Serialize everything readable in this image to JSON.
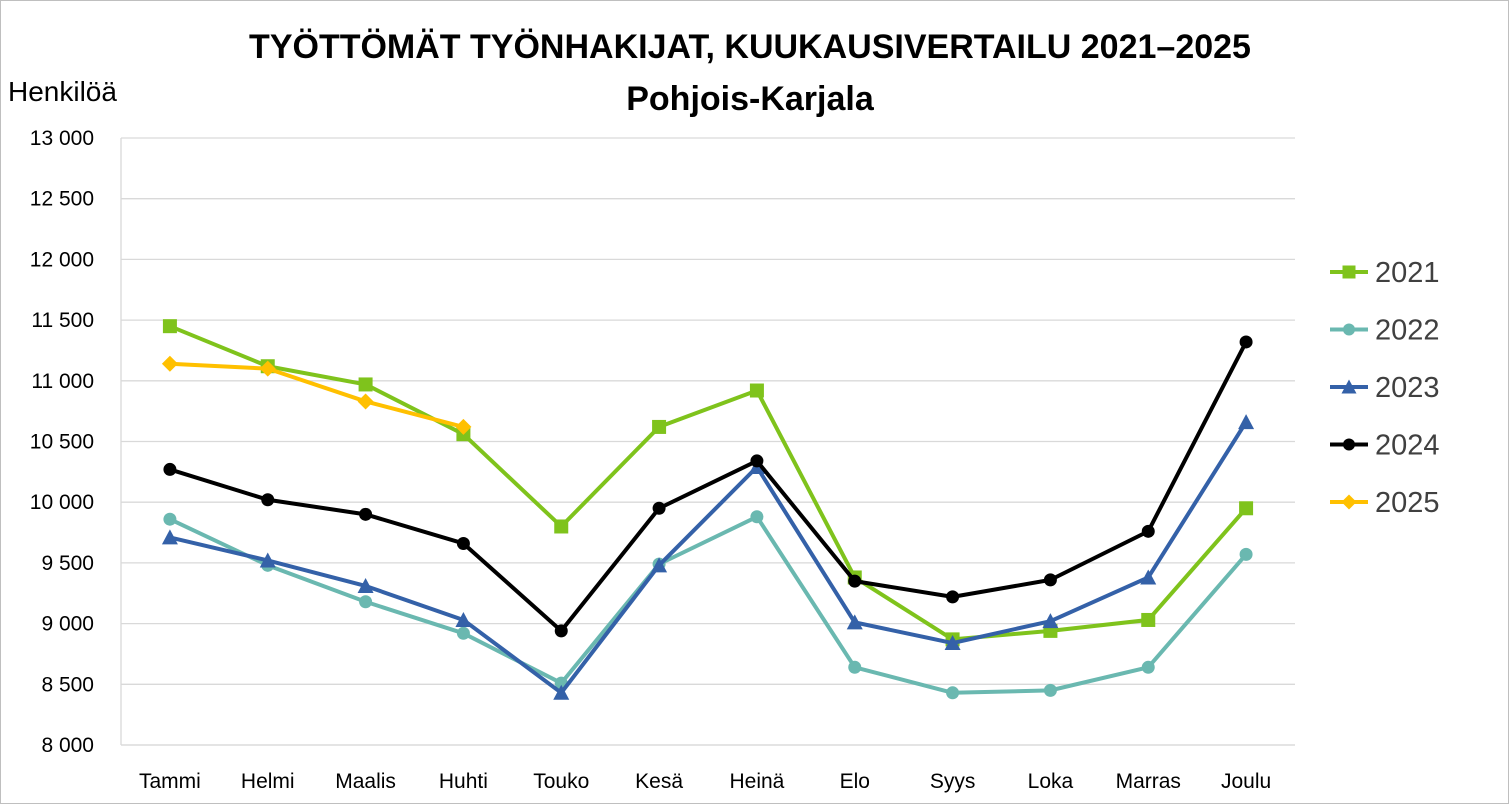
{
  "title": "TYÖTTÖMÄT TYÖNHAKIJAT, KUUKAUSIVERTAILU 2021–2025",
  "subtitle": "Pohjois-Karjala",
  "chart_data": {
    "type": "line",
    "title": "TYÖTTÖMÄT TYÖNHAKIJAT, KUUKAUSIVERTAILU 2021–2025",
    "subtitle": "Pohjois-Karjala",
    "ylabel": "Henkilöä",
    "xlabel": "",
    "ylim": [
      8000,
      13000
    ],
    "yticks": [
      8000,
      8500,
      9000,
      9500,
      10000,
      10500,
      11000,
      11500,
      12000,
      12500,
      13000
    ],
    "ytick_labels": [
      "8 000",
      "8 500",
      "9 000",
      "9 500",
      "10 000",
      "10 500",
      "11 000",
      "11 500",
      "12 000",
      "12 500",
      "13 000"
    ],
    "grid": "horizontal",
    "legend": "right",
    "categories": [
      "Tammi",
      "Helmi",
      "Maalis",
      "Huhti",
      "Touko",
      "Kesä",
      "Heinä",
      "Elo",
      "Syys",
      "Loka",
      "Marras",
      "Joulu"
    ],
    "series": [
      {
        "name": "2021",
        "color": "#7fc31c",
        "marker": "square",
        "values": [
          11450,
          11120,
          10970,
          10560,
          9800,
          10620,
          10920,
          9380,
          8870,
          8940,
          9030,
          9950
        ]
      },
      {
        "name": "2022",
        "color": "#6ab8b0",
        "marker": "circle",
        "values": [
          9860,
          9480,
          9180,
          8920,
          8510,
          9490,
          9880,
          8640,
          8430,
          8450,
          8640,
          9570
        ]
      },
      {
        "name": "2023",
        "color": "#3461a8",
        "marker": "triangle",
        "values": [
          9710,
          9520,
          9310,
          9030,
          8430,
          9480,
          10290,
          9010,
          8840,
          9020,
          9380,
          10660
        ]
      },
      {
        "name": "2024",
        "color": "#000000",
        "marker": "circle",
        "values": [
          10270,
          10020,
          9900,
          9660,
          8940,
          9950,
          10340,
          9350,
          9220,
          9360,
          9760,
          11320
        ]
      },
      {
        "name": "2025",
        "color": "#ffc000",
        "marker": "diamond",
        "values": [
          11140,
          11100,
          10830,
          10620,
          null,
          null,
          null,
          null,
          null,
          null,
          null,
          null
        ]
      }
    ]
  }
}
